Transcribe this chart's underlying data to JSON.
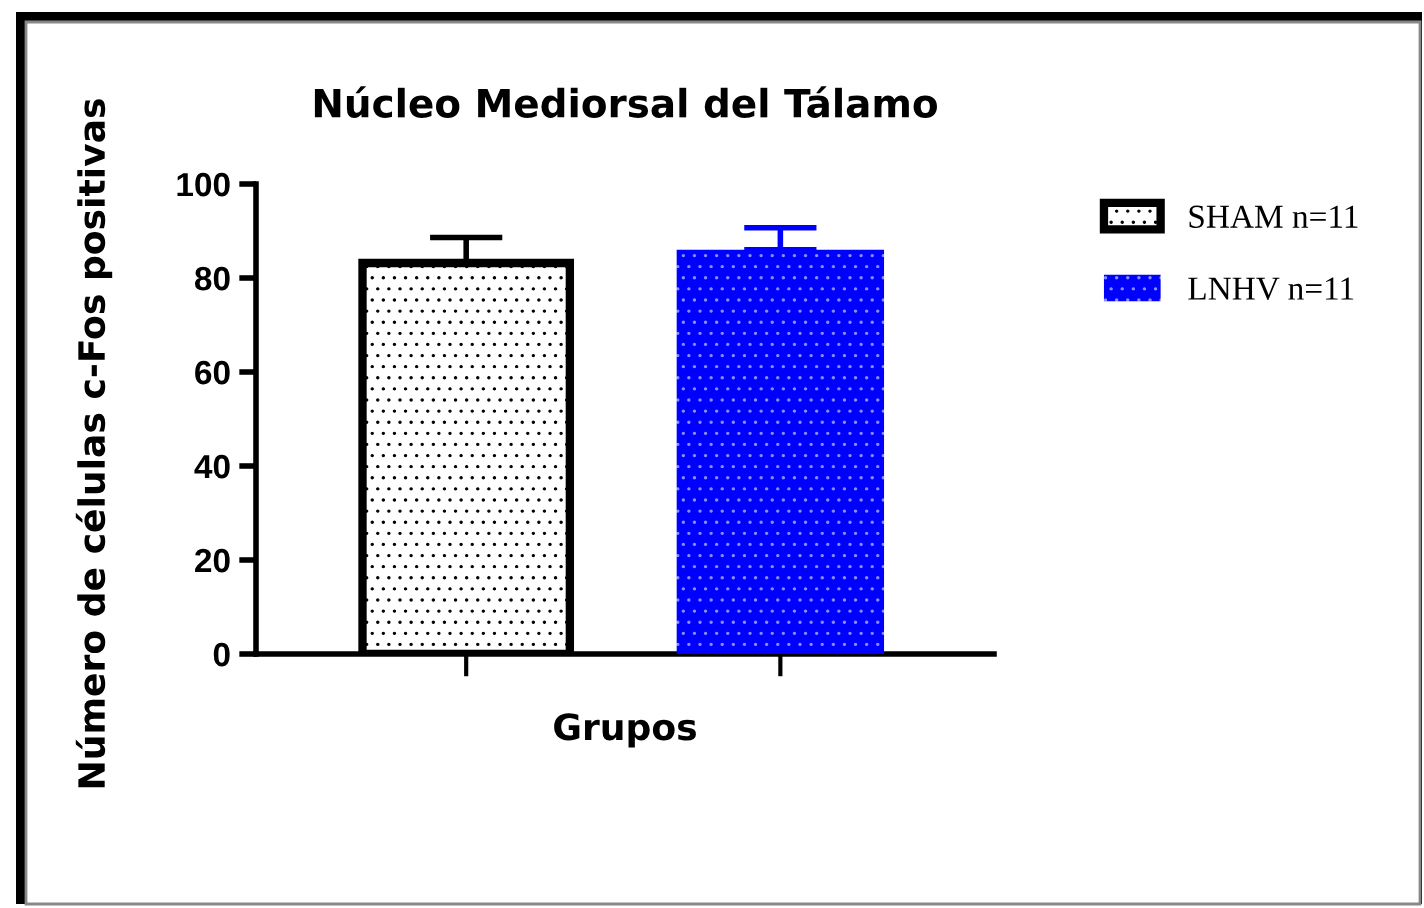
{
  "chart_data": {
    "type": "bar",
    "title": "Núcleo Mediorsal del Tálamo",
    "xlabel": "Grupos",
    "ylabel": "Número de células c-Fos positivas",
    "categories": [
      null,
      null
    ],
    "stacked": true,
    "series": [
      {
        "name": "SHAM n=11",
        "color": "#000000",
        "values": [
          83.2,
          null
        ],
        "errors": [
          [
            83.2,
            88.6
          ],
          null
        ]
      },
      {
        "name": "LNHV n=11",
        "color": "#0000ff",
        "values": [
          null,
          86.0
        ],
        "errors": [
          null,
          [
            86.0,
            90.7
          ]
        ]
      }
    ],
    "ylim": [
      0,
      100
    ],
    "yticks": [
      0,
      20,
      40,
      60,
      80,
      100
    ],
    "legend": "top right",
    "tick_labels": "y"
  }
}
